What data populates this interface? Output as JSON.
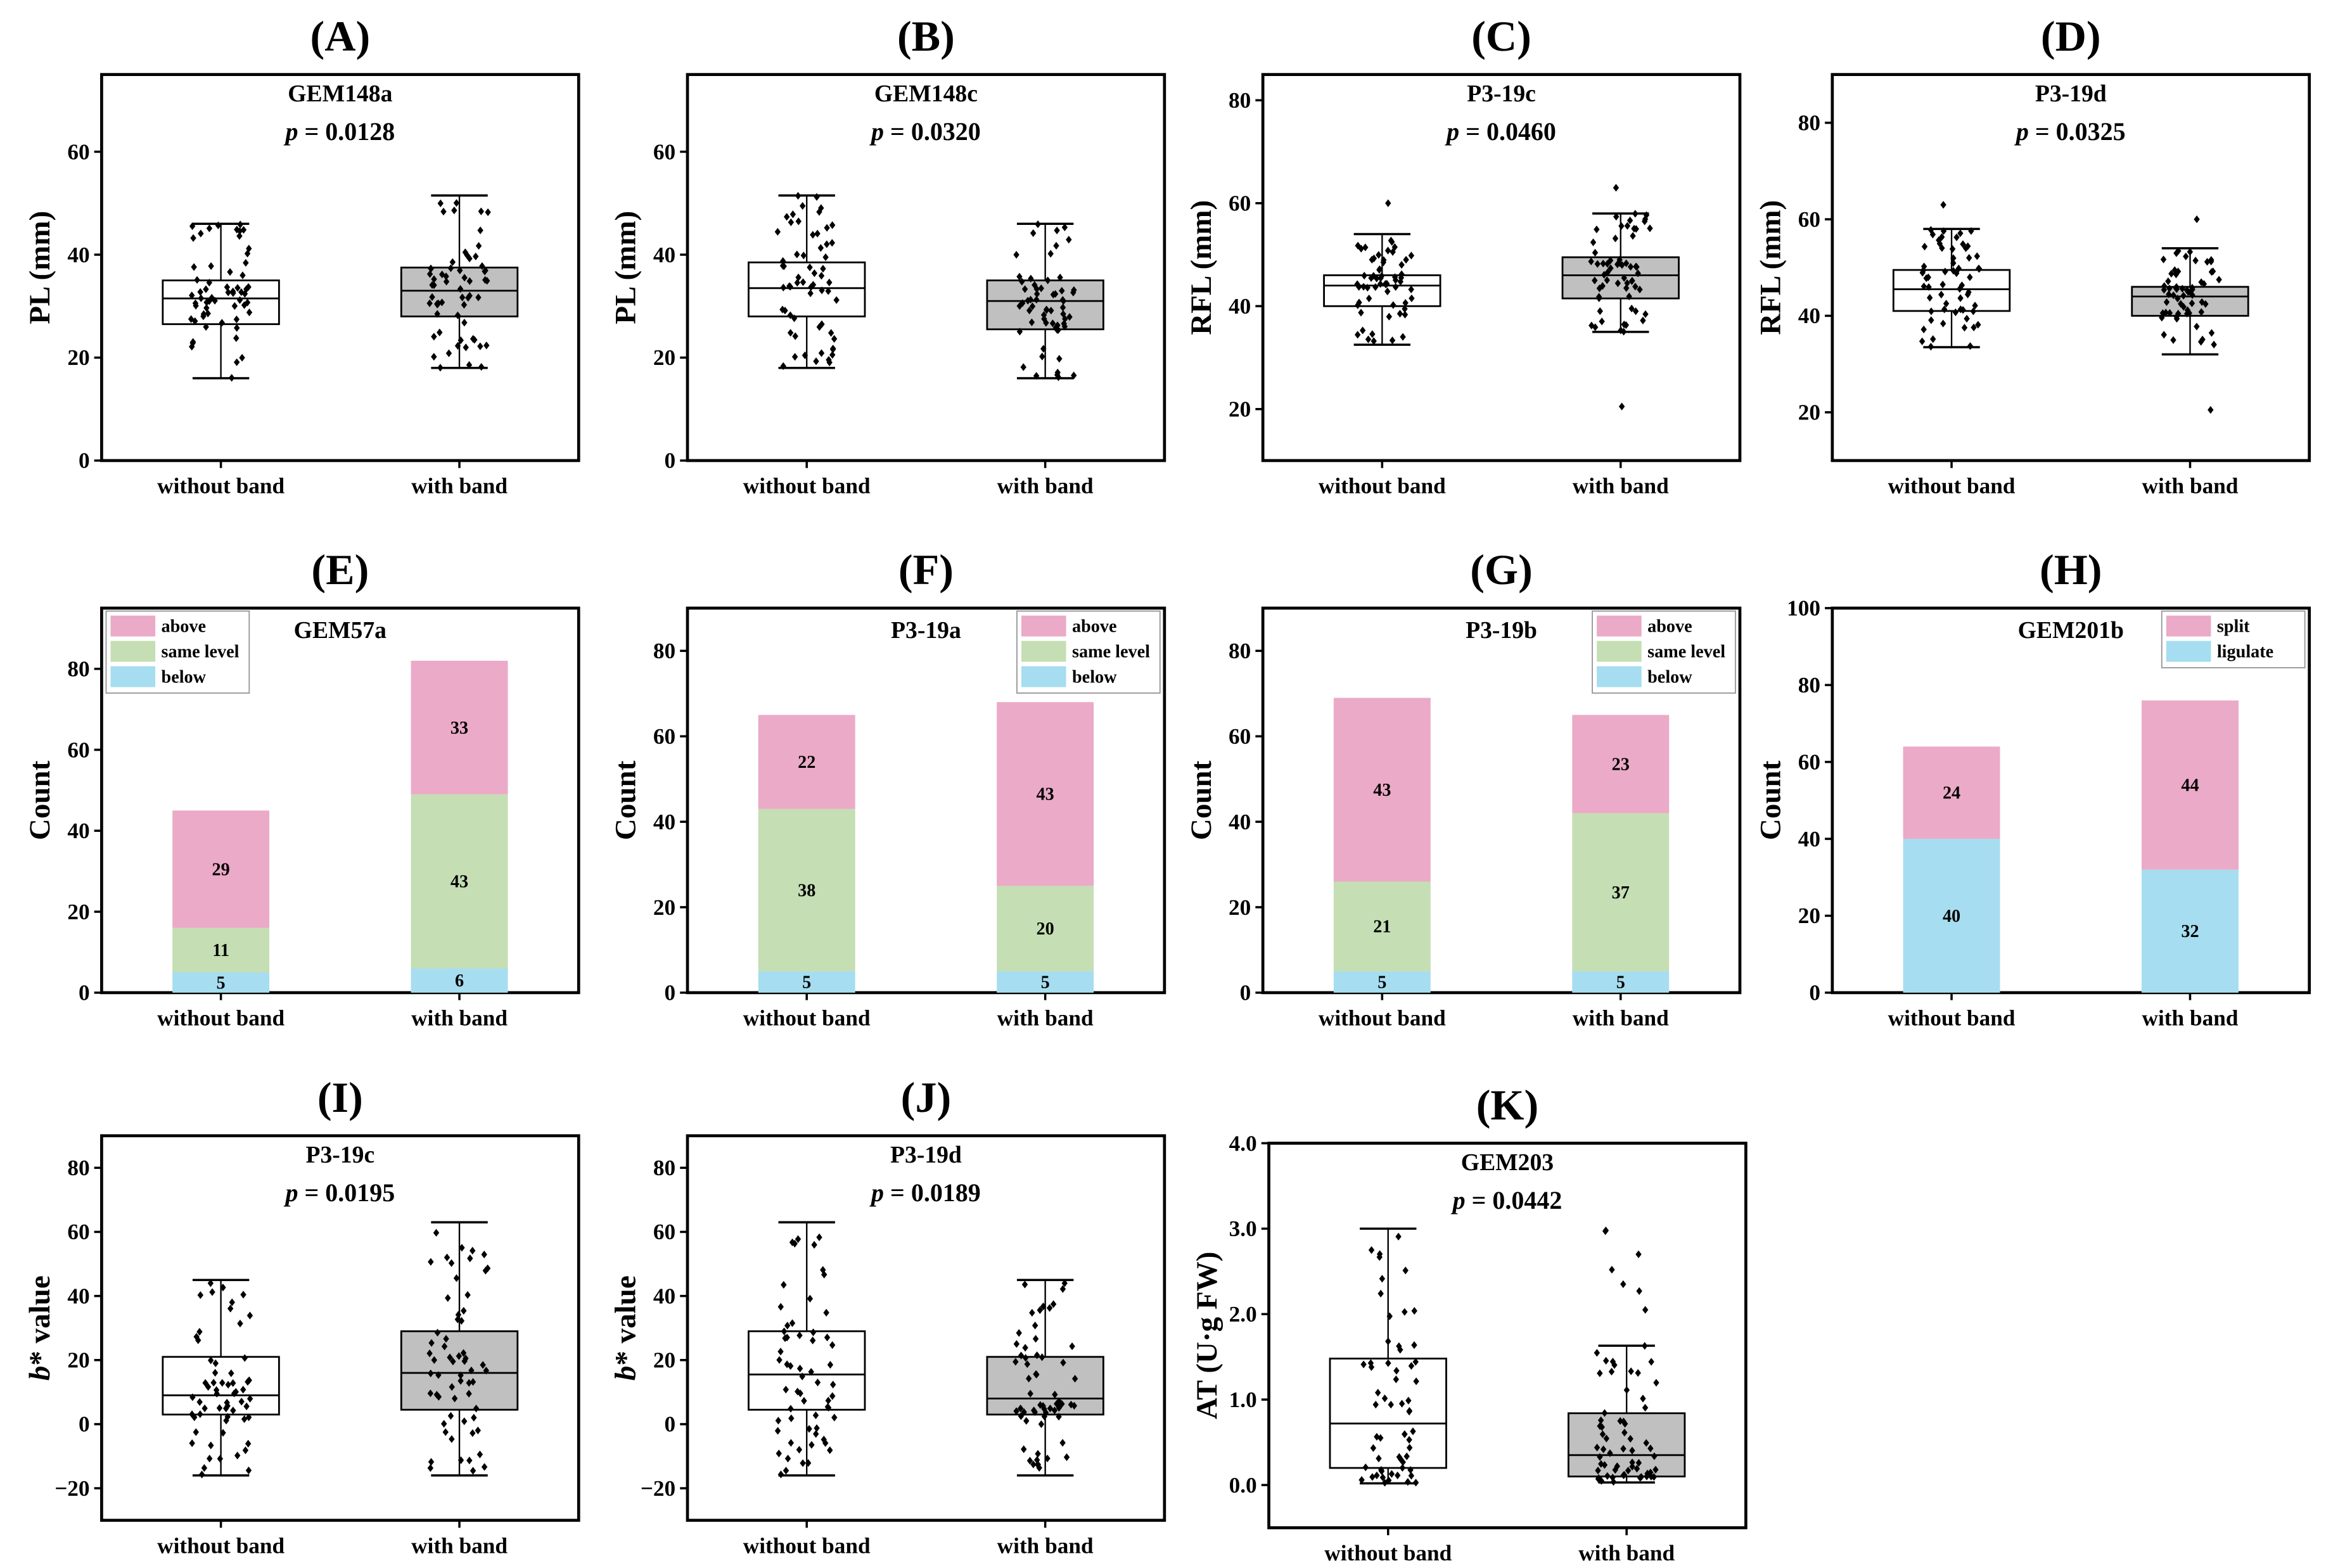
{
  "colors": {
    "above": "#EBAAC7",
    "same level": "#C5DEB4",
    "below": "#A6DDF0",
    "split": "#EBAAC7",
    "ligulate": "#A6DDF0",
    "box_without": "#FFFFFF",
    "box_with": "#C0C0C0"
  },
  "chart_data": [
    {
      "id": "A",
      "type": "box",
      "panel_label": "(A)",
      "title": "GEM148a",
      "p_label": "p",
      "p_value": "= 0.0128",
      "ylabel": "PL (mm)",
      "ylim": [
        0,
        75
      ],
      "yticks": [
        0,
        20,
        40,
        60
      ],
      "tick_decimals": 0,
      "categories": [
        "without band",
        "with band"
      ],
      "series": [
        {
          "name": "without band",
          "min": 16,
          "q1": 26.5,
          "median": 31.5,
          "q3": 35,
          "max": 46,
          "outliers": []
        },
        {
          "name": "with band",
          "min": 18,
          "q1": 28,
          "median": 33,
          "q3": 37.5,
          "max": 51.5,
          "outliers": []
        }
      ]
    },
    {
      "id": "B",
      "type": "box",
      "panel_label": "(B)",
      "title": "GEM148c",
      "p_label": "p",
      "p_value": "= 0.0320",
      "ylabel": "PL (mm)",
      "ylim": [
        0,
        75
      ],
      "yticks": [
        0,
        20,
        40,
        60
      ],
      "tick_decimals": 0,
      "categories": [
        "without band",
        "with band"
      ],
      "series": [
        {
          "name": "without band",
          "min": 18,
          "q1": 28,
          "median": 33.5,
          "q3": 38.5,
          "max": 51.5,
          "outliers": []
        },
        {
          "name": "with band",
          "min": 16,
          "q1": 25.5,
          "median": 31,
          "q3": 35,
          "max": 46,
          "outliers": []
        }
      ]
    },
    {
      "id": "C",
      "type": "box",
      "panel_label": "(C)",
      "title": "P3-19c",
      "p_label": "p",
      "p_value": "= 0.0460",
      "ylabel": "RFL (mm)",
      "ylim": [
        10,
        85
      ],
      "yticks": [
        20,
        40,
        60,
        80
      ],
      "tick_decimals": 0,
      "categories": [
        "without band",
        "with band"
      ],
      "series": [
        {
          "name": "without band",
          "min": 32.5,
          "q1": 40,
          "median": 44,
          "q3": 46,
          "max": 54,
          "outliers": [
            60
          ]
        },
        {
          "name": "with band",
          "min": 35,
          "q1": 41.5,
          "median": 46,
          "q3": 49.5,
          "max": 58,
          "outliers": [
            63,
            20.5
          ]
        }
      ]
    },
    {
      "id": "D",
      "type": "box",
      "panel_label": "(D)",
      "title": "P3-19d",
      "p_label": "p",
      "p_value": "= 0.0325",
      "ylabel": "RFL (mm)",
      "ylim": [
        10,
        90
      ],
      "yticks": [
        20,
        40,
        60,
        80
      ],
      "tick_decimals": 0,
      "categories": [
        "without band",
        "with band"
      ],
      "series": [
        {
          "name": "without band",
          "min": 33.5,
          "q1": 41,
          "median": 45.5,
          "q3": 49.5,
          "max": 58,
          "outliers": [
            63
          ]
        },
        {
          "name": "with band",
          "min": 32,
          "q1": 40,
          "median": 44,
          "q3": 46,
          "max": 54,
          "outliers": [
            60,
            20.5
          ]
        }
      ]
    },
    {
      "id": "E",
      "type": "stacked_bar",
      "panel_label": "(E)",
      "title": "GEM57a",
      "ylabel": "Count",
      "ylim": [
        0,
        95
      ],
      "yticks": [
        0,
        20,
        40,
        60,
        80
      ],
      "legend_position": "top-left",
      "categories": [
        "without band",
        "with band"
      ],
      "series": [
        {
          "name": "below",
          "values": [
            5,
            6
          ]
        },
        {
          "name": "same level",
          "values": [
            11,
            43
          ]
        },
        {
          "name": "above",
          "values": [
            29,
            33
          ]
        }
      ]
    },
    {
      "id": "F",
      "type": "stacked_bar",
      "panel_label": "(F)",
      "title": "P3-19a",
      "ylabel": "Count",
      "ylim": [
        0,
        90
      ],
      "yticks": [
        0,
        20,
        40,
        60,
        80
      ],
      "legend_position": "top-right",
      "categories": [
        "without band",
        "with band"
      ],
      "series": [
        {
          "name": "below",
          "values": [
            5,
            5
          ]
        },
        {
          "name": "same level",
          "values": [
            38,
            20
          ]
        },
        {
          "name": "above",
          "values": [
            22,
            43
          ]
        }
      ]
    },
    {
      "id": "G",
      "type": "stacked_bar",
      "panel_label": "(G)",
      "title": "P3-19b",
      "ylabel": "Count",
      "ylim": [
        0,
        90
      ],
      "yticks": [
        0,
        20,
        40,
        60,
        80
      ],
      "legend_position": "top-right",
      "categories": [
        "without band",
        "with band"
      ],
      "series": [
        {
          "name": "below",
          "values": [
            5,
            5
          ]
        },
        {
          "name": "same level",
          "values": [
            21,
            37
          ]
        },
        {
          "name": "above",
          "values": [
            43,
            23
          ]
        }
      ]
    },
    {
      "id": "H",
      "type": "stacked_bar",
      "panel_label": "(H)",
      "title": "GEM201b",
      "ylabel": "Count",
      "ylim": [
        0,
        100
      ],
      "yticks": [
        0,
        20,
        40,
        60,
        80,
        100
      ],
      "legend_position": "top-right",
      "categories": [
        "without band",
        "with band"
      ],
      "series": [
        {
          "name": "ligulate",
          "values": [
            40,
            32
          ]
        },
        {
          "name": "split",
          "values": [
            24,
            44
          ]
        }
      ]
    },
    {
      "id": "I",
      "type": "box",
      "panel_label": "(I)",
      "title": "P3-19c",
      "p_label": "p",
      "p_value": "= 0.0195",
      "ylabel_italic": "b",
      "ylabel": "* value",
      "ylim": [
        -30,
        90
      ],
      "yticks": [
        -20,
        0,
        20,
        40,
        60,
        80
      ],
      "tick_decimals": 0,
      "categories": [
        "without band",
        "with band"
      ],
      "series": [
        {
          "name": "without band",
          "min": -16,
          "q1": 3,
          "median": 9,
          "q3": 21,
          "max": 45,
          "outliers": []
        },
        {
          "name": "with band",
          "min": -16,
          "q1": 4.5,
          "median": 16,
          "q3": 29,
          "max": 63,
          "outliers": []
        }
      ]
    },
    {
      "id": "J",
      "type": "box",
      "panel_label": "(J)",
      "title": "P3-19d",
      "p_label": "p",
      "p_value": "= 0.0189",
      "ylabel_italic": "b",
      "ylabel": "* value",
      "ylim": [
        -30,
        90
      ],
      "yticks": [
        -20,
        0,
        20,
        40,
        60,
        80
      ],
      "tick_decimals": 0,
      "categories": [
        "without band",
        "with band"
      ],
      "series": [
        {
          "name": "without band",
          "min": -16,
          "q1": 4.5,
          "median": 15.5,
          "q3": 29,
          "max": 63,
          "outliers": []
        },
        {
          "name": "with band",
          "min": -16,
          "q1": 3,
          "median": 8,
          "q3": 21,
          "max": 45,
          "outliers": []
        }
      ]
    },
    {
      "id": "K",
      "type": "box",
      "panel_label": "(K)",
      "title": "GEM203",
      "p_label": "p",
      "p_value": "= 0.0442",
      "ylabel": "AT (U·g FW)",
      "ylim": [
        -0.5,
        4
      ],
      "yticks": [
        0,
        1,
        2,
        3,
        4
      ],
      "tick_decimals": 1,
      "categories": [
        "without band",
        "with band"
      ],
      "series": [
        {
          "name": "without band",
          "min": 0.02,
          "q1": 0.2,
          "median": 0.72,
          "q3": 1.48,
          "max": 3.0,
          "outliers": []
        },
        {
          "name": "with band",
          "min": 0.03,
          "q1": 0.1,
          "median": 0.35,
          "q3": 0.84,
          "max": 1.63,
          "outliers": [
            2.98,
            2.97,
            2.7,
            2.52,
            2.35,
            2.27,
            2.05
          ]
        }
      ]
    }
  ]
}
